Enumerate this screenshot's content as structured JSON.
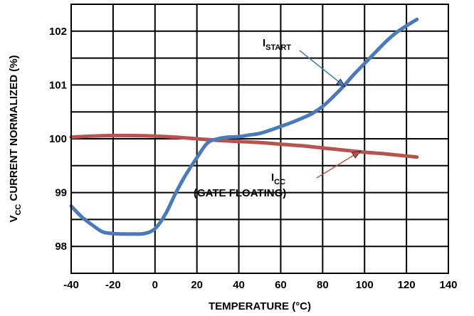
{
  "chart_data": {
    "type": "line",
    "xlabel": "TEMPERATURE (°C)",
    "ylabel": {
      "main": "V",
      "sub": "CC",
      "rest": " CURRENT NORMALIZED (%)"
    },
    "xlim": [
      -40,
      140
    ],
    "ylim": [
      97.5,
      102.5
    ],
    "x_ticks": [
      -40,
      -20,
      0,
      20,
      40,
      60,
      80,
      100,
      120,
      140
    ],
    "y_ticks": [
      98,
      99,
      100,
      101,
      102
    ],
    "grid": true,
    "series": [
      {
        "label": {
          "main": "I",
          "sub": "START"
        },
        "color": "#4a7ab8",
        "points": [
          [
            -40,
            98.75
          ],
          [
            -35,
            98.55
          ],
          [
            -30,
            98.4
          ],
          [
            -25,
            98.27
          ],
          [
            -20,
            98.24
          ],
          [
            -15,
            98.23
          ],
          [
            -10,
            98.23
          ],
          [
            -5,
            98.24
          ],
          [
            0,
            98.33
          ],
          [
            5,
            98.6
          ],
          [
            10,
            99.0
          ],
          [
            15,
            99.35
          ],
          [
            20,
            99.65
          ],
          [
            25,
            99.92
          ],
          [
            30,
            100.0
          ],
          [
            35,
            100.03
          ],
          [
            40,
            100.04
          ],
          [
            45,
            100.07
          ],
          [
            50,
            100.1
          ],
          [
            55,
            100.16
          ],
          [
            60,
            100.23
          ],
          [
            65,
            100.3
          ],
          [
            70,
            100.38
          ],
          [
            75,
            100.47
          ],
          [
            80,
            100.6
          ],
          [
            85,
            100.78
          ],
          [
            90,
            100.98
          ],
          [
            95,
            101.2
          ],
          [
            100,
            101.4
          ],
          [
            105,
            101.6
          ],
          [
            110,
            101.8
          ],
          [
            115,
            101.97
          ],
          [
            120,
            102.1
          ],
          [
            125,
            102.22
          ]
        ]
      },
      {
        "label": {
          "main": "I",
          "sub": "CC",
          "note": "(GATE FLOATING)"
        },
        "color": "#b85450",
        "points": [
          [
            -40,
            100.03
          ],
          [
            -30,
            100.05
          ],
          [
            -20,
            100.06
          ],
          [
            -10,
            100.06
          ],
          [
            0,
            100.05
          ],
          [
            10,
            100.03
          ],
          [
            20,
            100.0
          ],
          [
            30,
            99.97
          ],
          [
            40,
            99.95
          ],
          [
            50,
            99.93
          ],
          [
            60,
            99.9
          ],
          [
            70,
            99.87
          ],
          [
            80,
            99.83
          ],
          [
            90,
            99.79
          ],
          [
            100,
            99.75
          ],
          [
            110,
            99.72
          ],
          [
            120,
            99.68
          ],
          [
            125,
            99.66
          ]
        ]
      }
    ]
  }
}
